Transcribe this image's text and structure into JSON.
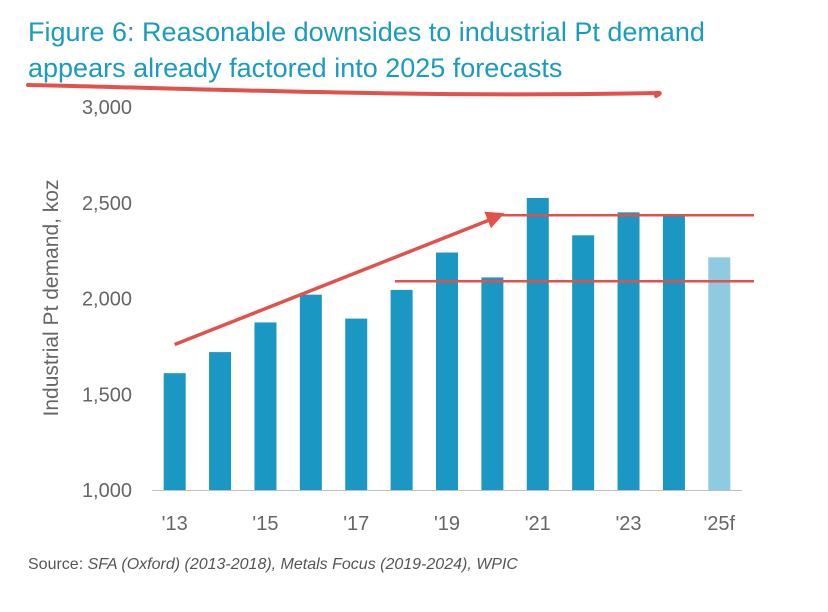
{
  "title_line1": "Figure 6: Reasonable downsides to industrial Pt demand",
  "title_line2": "appears already factored into 2025 forecasts",
  "source_prefix": "Source: ",
  "source_body": "SFA (Oxford) (2013-2018), Metals Focus (2019-2024), WPIC",
  "colors": {
    "title": "#1a9bc0",
    "bar": "#1a97c2",
    "bar_forecast": "#8ecae0",
    "annotation": "#e0524a",
    "axis_text": "#666666"
  },
  "chart_data": {
    "type": "bar",
    "title": "",
    "xlabel": "",
    "ylabel": "Industrial Pt demand, koz",
    "ylim": [
      1000,
      3000
    ],
    "yticks": [
      1000,
      1500,
      2000,
      2500,
      3000
    ],
    "ytick_labels": [
      "1,000",
      "1,500",
      "2,000",
      "2,500",
      "3,000"
    ],
    "categories": [
      "2013",
      "2014",
      "2015",
      "2016",
      "2017",
      "2018",
      "2019",
      "2020",
      "2021",
      "2022",
      "2023",
      "2024",
      "2025f"
    ],
    "tick_labels": [
      "'13",
      "",
      "'15",
      "",
      "'17",
      "",
      "'19",
      "",
      "'21",
      "",
      "'23",
      "",
      "'25f"
    ],
    "values": [
      1610,
      1720,
      1875,
      2020,
      1895,
      2045,
      2240,
      2110,
      2525,
      2330,
      2450,
      2435,
      2215
    ],
    "forecast": [
      false,
      false,
      false,
      false,
      false,
      false,
      false,
      false,
      false,
      false,
      false,
      false,
      true
    ],
    "grid": false,
    "annotations": {
      "trend_arrow": {
        "from": [
          "2013",
          1760
        ],
        "to": [
          "2020",
          2445
        ]
      },
      "upper_line": {
        "from": "2020",
        "to": "2025f",
        "value": 2435
      },
      "lower_line": {
        "from": "2018",
        "to": "2025f",
        "value": 2090
      },
      "title_underline": true
    }
  }
}
